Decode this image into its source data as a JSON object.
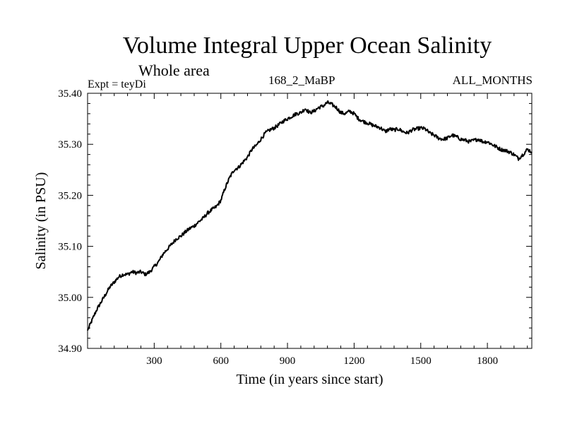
{
  "chart_data": {
    "type": "line",
    "title": "Volume Integral Upper Ocean Salinity",
    "subtitle": "Whole area",
    "left_label": "Expt = teyDi",
    "center_label": "168_2_MaBP",
    "right_label": "ALL_MONTHS",
    "xlabel": "Time (in years since start)",
    "ylabel": "Salinity (in PSU)",
    "xlim": [
      0,
      2000
    ],
    "ylim": [
      34.9,
      35.4
    ],
    "xticks": [
      300,
      600,
      900,
      1200,
      1500,
      1800
    ],
    "xtick_labels": [
      "300",
      "600",
      "900",
      "1200",
      "1500",
      "1800"
    ],
    "yticks": [
      34.9,
      35.0,
      35.1,
      35.2,
      35.3,
      35.4
    ],
    "ytick_labels": [
      "34.90",
      "35.00",
      "35.10",
      "35.20",
      "35.30",
      "35.40"
    ],
    "grid": false,
    "series": [
      {
        "name": "Salinity",
        "x": [
          0,
          20,
          40,
          60,
          80,
          100,
          120,
          140,
          160,
          180,
          200,
          220,
          240,
          260,
          280,
          300,
          320,
          340,
          360,
          380,
          400,
          420,
          440,
          460,
          480,
          500,
          520,
          540,
          560,
          580,
          600,
          620,
          640,
          660,
          680,
          700,
          720,
          740,
          760,
          780,
          800,
          820,
          840,
          860,
          880,
          900,
          920,
          940,
          960,
          980,
          1000,
          1020,
          1040,
          1060,
          1080,
          1100,
          1120,
          1140,
          1160,
          1180,
          1200,
          1220,
          1240,
          1260,
          1280,
          1300,
          1320,
          1340,
          1360,
          1380,
          1400,
          1420,
          1440,
          1460,
          1480,
          1500,
          1520,
          1540,
          1560,
          1580,
          1600,
          1620,
          1640,
          1660,
          1680,
          1700,
          1720,
          1740,
          1760,
          1780,
          1800,
          1820,
          1840,
          1860,
          1880,
          1900,
          1920,
          1940,
          1960,
          1980,
          2000
        ],
        "values": [
          34.935,
          34.955,
          34.975,
          34.99,
          35.005,
          35.02,
          35.03,
          35.04,
          35.045,
          35.045,
          35.05,
          35.048,
          35.05,
          35.045,
          35.05,
          35.06,
          35.07,
          35.085,
          35.095,
          35.105,
          35.115,
          35.12,
          35.128,
          35.135,
          35.14,
          35.148,
          35.155,
          35.165,
          35.172,
          35.178,
          35.19,
          35.215,
          35.235,
          35.25,
          35.255,
          35.265,
          35.275,
          35.29,
          35.298,
          35.31,
          35.322,
          35.328,
          35.332,
          35.338,
          35.345,
          35.35,
          35.355,
          35.36,
          35.362,
          35.37,
          35.362,
          35.365,
          35.372,
          35.375,
          35.382,
          35.378,
          35.372,
          35.362,
          35.36,
          35.365,
          35.36,
          35.35,
          35.345,
          35.342,
          35.338,
          35.335,
          35.332,
          35.325,
          35.33,
          35.328,
          35.33,
          35.325,
          35.322,
          35.328,
          35.33,
          35.332,
          35.33,
          35.322,
          35.318,
          35.312,
          35.31,
          35.312,
          35.318,
          35.315,
          35.31,
          35.308,
          35.305,
          35.308,
          35.31,
          35.305,
          35.305,
          35.3,
          35.295,
          35.29,
          35.288,
          35.285,
          35.28,
          35.272,
          35.28,
          35.29,
          35.285
        ]
      }
    ]
  }
}
